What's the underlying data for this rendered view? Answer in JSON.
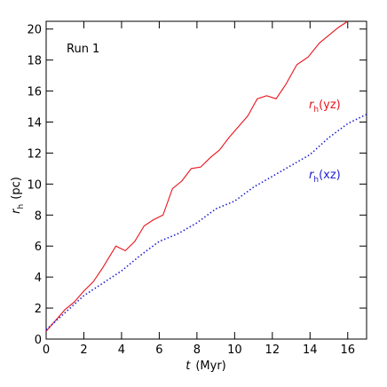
{
  "chart_data": {
    "type": "line",
    "annotation": "Run 1",
    "xlabel": {
      "symbol": "t",
      "unit": "(Myr)"
    },
    "ylabel": {
      "symbol": "r",
      "subscript": "h",
      "unit": "(pc)"
    },
    "xlim": [
      0,
      17
    ],
    "xticks": [
      0,
      2,
      4,
      6,
      8,
      10,
      12,
      14,
      16
    ],
    "ylim": [
      0,
      20.5
    ],
    "yticks": [
      0,
      2,
      4,
      6,
      8,
      10,
      12,
      14,
      16,
      18,
      20
    ],
    "series": [
      {
        "name": {
          "symbol": "r",
          "subscript": "h",
          "suffix": "(yz)"
        },
        "color": "#e8141c",
        "style": "solid",
        "x": [
          0,
          0.5,
          1,
          1.5,
          2,
          2.5,
          3,
          3.7,
          4.2,
          4.7,
          5.2,
          5.7,
          6.2,
          6.7,
          7.2,
          7.7,
          8.2,
          8.7,
          9.2,
          9.7,
          10.2,
          10.7,
          11.2,
          11.7,
          12.2,
          12.7,
          13.3,
          13.9,
          14.5,
          15,
          15.5,
          16
        ],
        "values": [
          0.5,
          1.2,
          1.9,
          2.4,
          3.1,
          3.7,
          4.6,
          6.0,
          5.7,
          6.3,
          7.3,
          7.7,
          8.0,
          9.7,
          10.2,
          11.0,
          11.1,
          11.7,
          12.2,
          13.0,
          13.7,
          14.4,
          15.5,
          15.7,
          15.5,
          16.4,
          17.7,
          18.2,
          19.1,
          19.6,
          20.1,
          20.5
        ]
      },
      {
        "name": {
          "symbol": "r",
          "subscript": "h",
          "suffix": "(xz)"
        },
        "color": "#1f1fd0",
        "style": "dotted",
        "x": [
          0,
          1,
          2,
          3,
          4,
          5,
          6,
          7,
          8,
          9,
          10,
          11,
          12,
          13,
          14,
          15,
          16,
          17
        ],
        "values": [
          0.6,
          1.7,
          2.8,
          3.6,
          4.4,
          5.4,
          6.3,
          6.8,
          7.5,
          8.4,
          8.9,
          9.8,
          10.5,
          11.2,
          11.9,
          13.0,
          13.9,
          14.5
        ]
      }
    ]
  }
}
